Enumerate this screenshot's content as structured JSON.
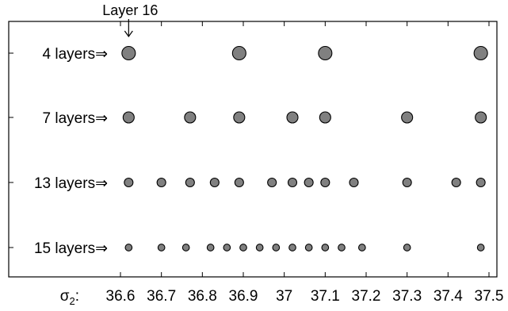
{
  "chart_data": {
    "type": "scatter",
    "x_axis_prefix": "σ",
    "x_axis_prefix_sub": "2",
    "x_axis_colon": ":",
    "xlim": [
      36.55,
      37.5
    ],
    "x_ticks": [
      36.6,
      36.7,
      36.8,
      36.9,
      37.0,
      37.1,
      37.2,
      37.3,
      37.4,
      37.5
    ],
    "x_tick_labels": [
      "36.6",
      "36.7",
      "36.8",
      "36.9",
      "37",
      "37.1",
      "37.2",
      "37.3",
      "37.4",
      "37.5"
    ],
    "grid": false,
    "annotation": {
      "text": "Layer 16",
      "x": 36.62,
      "row": 0
    },
    "marker_color": "#808080",
    "marker_edge_color": "#000000",
    "series": [
      {
        "name": "4 layers",
        "arrow": "⇒",
        "marker_size": "large",
        "x": [
          36.62,
          36.89,
          37.1,
          37.48
        ]
      },
      {
        "name": "7 layers",
        "arrow": "⇒",
        "marker_size": "medium",
        "x": [
          36.62,
          36.77,
          36.89,
          37.02,
          37.1,
          37.3,
          37.48
        ]
      },
      {
        "name": "13 layers",
        "arrow": "⇒",
        "marker_size": "small",
        "x": [
          36.62,
          36.7,
          36.77,
          36.83,
          36.89,
          36.97,
          37.02,
          37.06,
          37.1,
          37.17,
          37.3,
          37.42,
          37.48
        ]
      },
      {
        "name": "15 layers",
        "arrow": "⇒",
        "marker_size": "xsmall",
        "x": [
          36.62,
          36.7,
          36.76,
          36.82,
          36.86,
          36.9,
          36.94,
          36.98,
          37.02,
          37.06,
          37.1,
          37.14,
          37.19,
          37.3,
          37.48
        ]
      }
    ]
  }
}
